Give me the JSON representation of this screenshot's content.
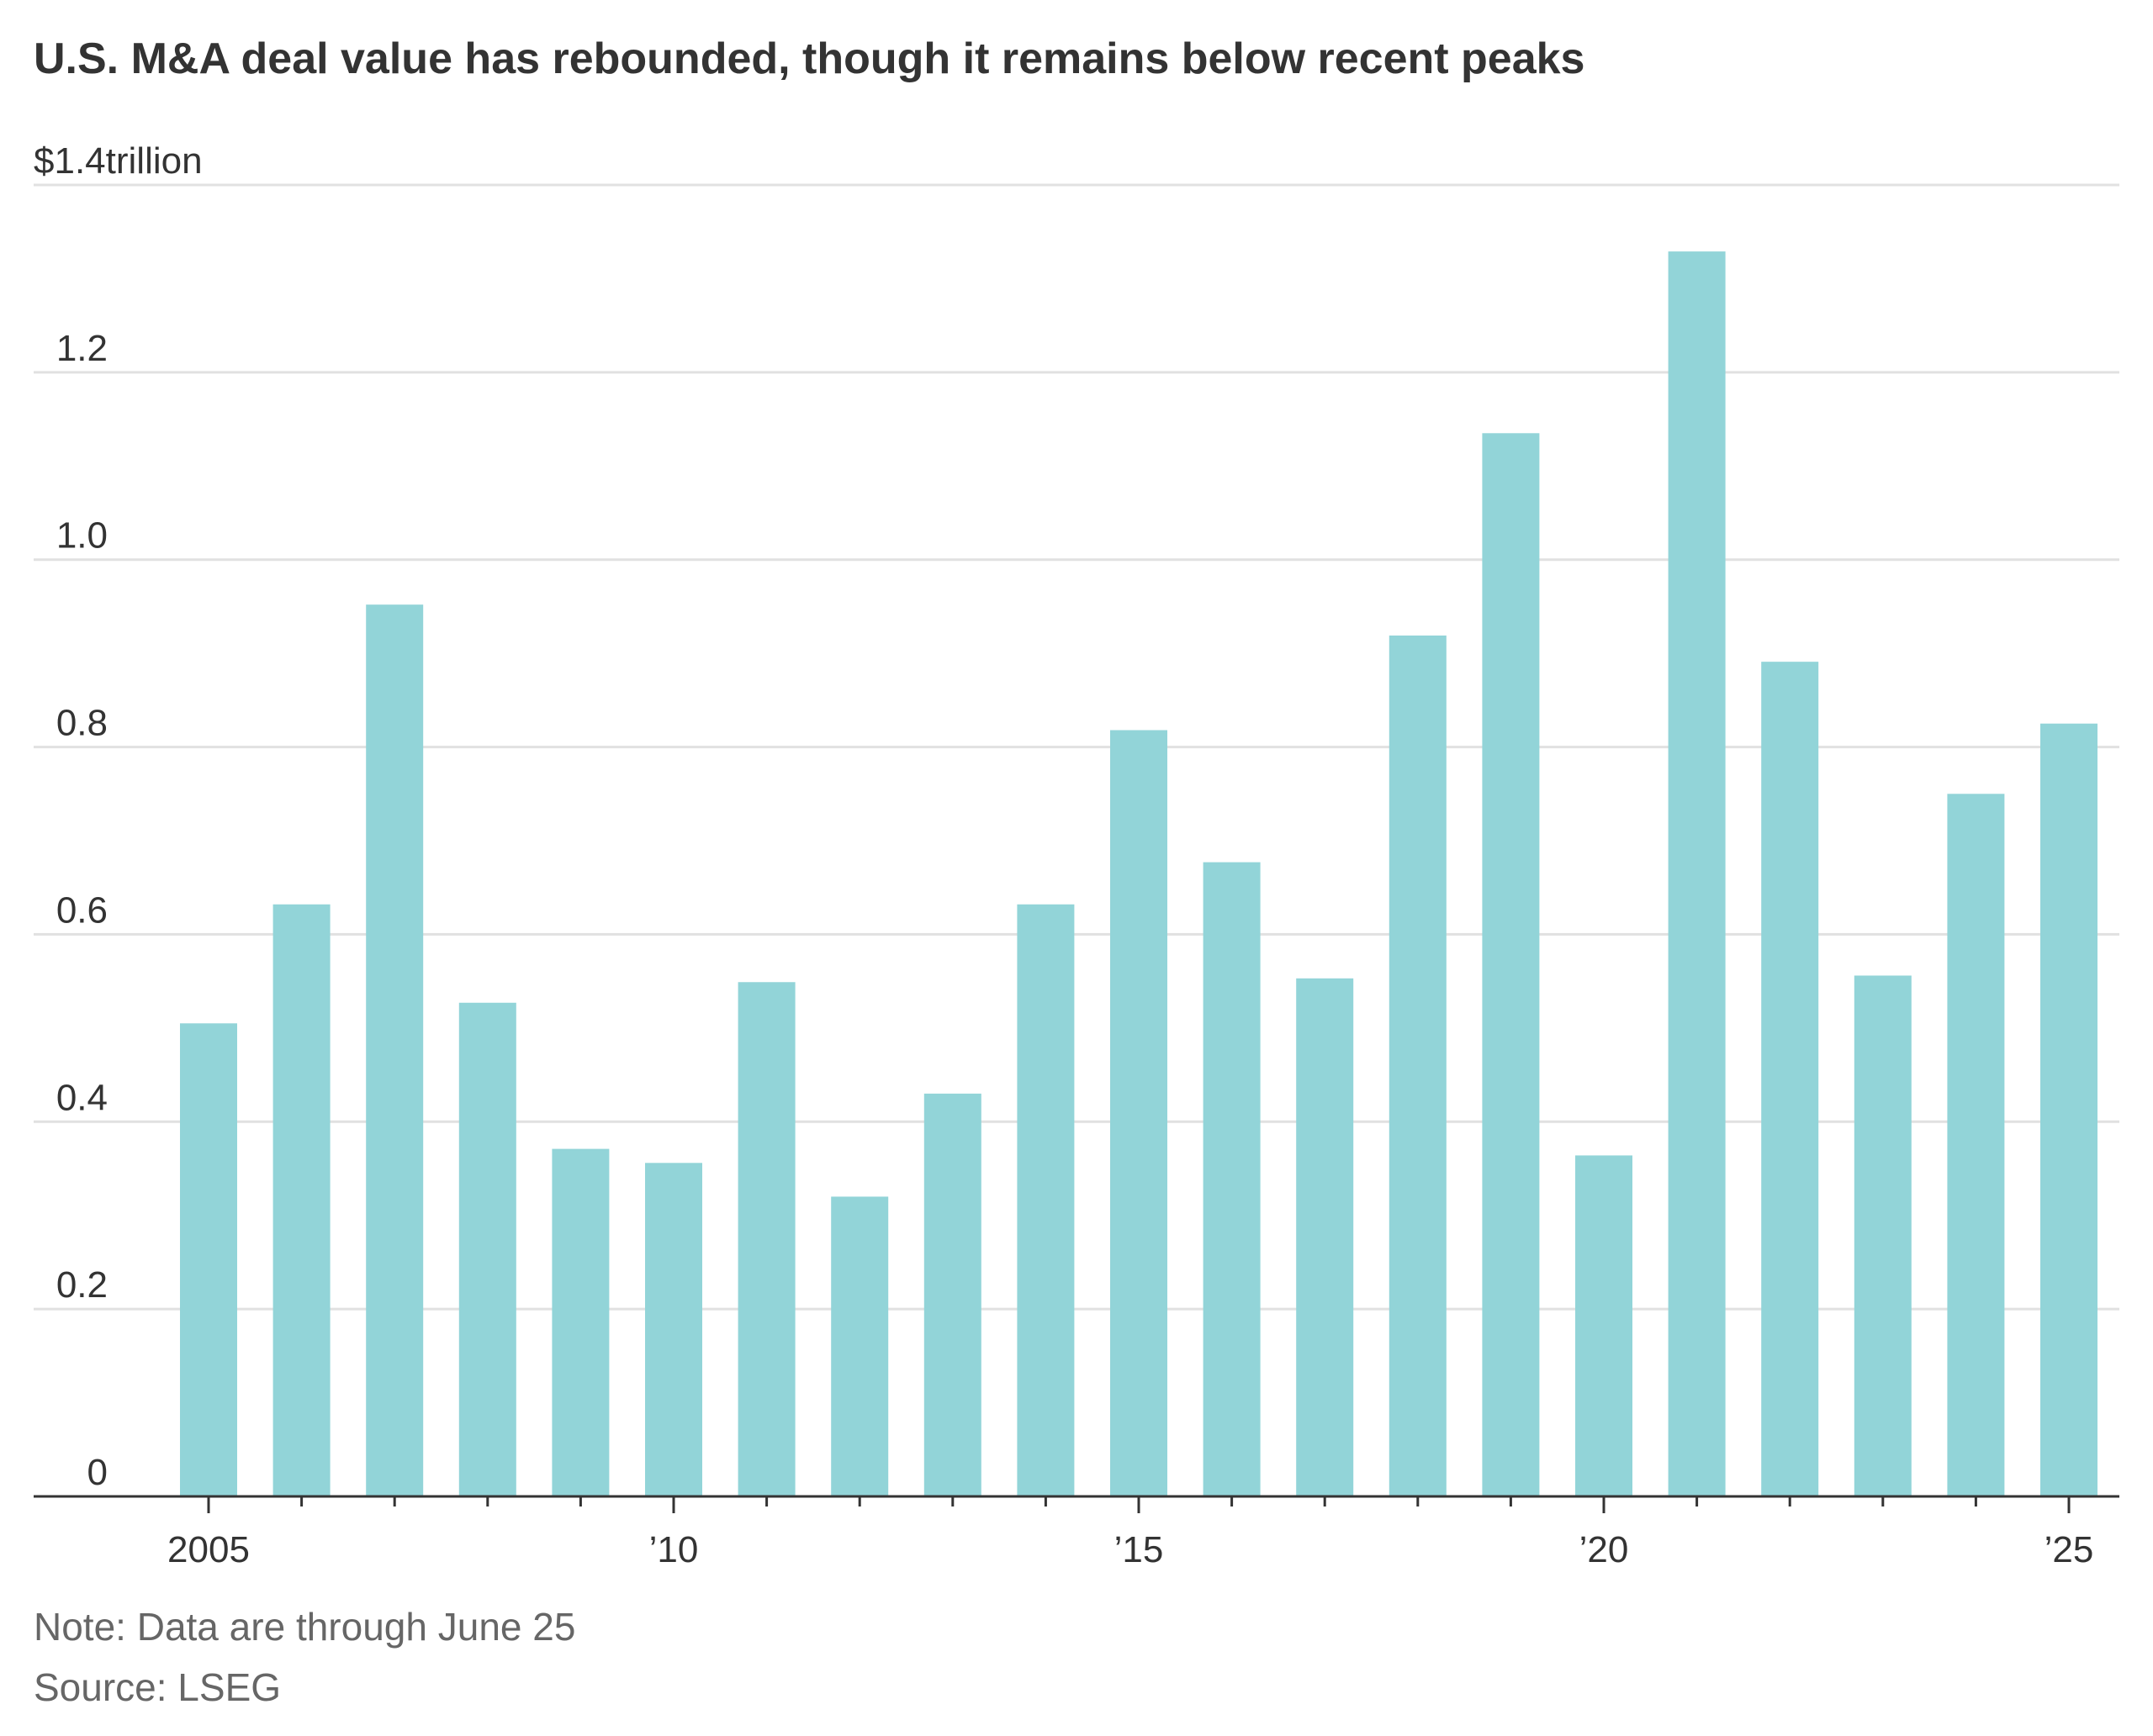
{
  "chart_data": {
    "type": "bar",
    "title": "U.S. M&A deal value has rebounded, though it remains below recent peaks",
    "ylabel": "$1.4trillion",
    "xlabel": "",
    "ylim": [
      0,
      1.4
    ],
    "yticks": [
      {
        "value": 0,
        "label": "0"
      },
      {
        "value": 0.2,
        "label": "0.2"
      },
      {
        "value": 0.4,
        "label": "0.4"
      },
      {
        "value": 0.6,
        "label": "0.6"
      },
      {
        "value": 0.8,
        "label": "0.8"
      },
      {
        "value": 1.0,
        "label": "1.0"
      },
      {
        "value": 1.2,
        "label": "1.2"
      },
      {
        "value": 1.4,
        "label": "$1.4trillion"
      }
    ],
    "categories": [
      2005,
      2006,
      2007,
      2008,
      2009,
      2010,
      2011,
      2012,
      2013,
      2014,
      2015,
      2016,
      2017,
      2018,
      2019,
      2020,
      2021,
      2022,
      2023,
      2024,
      2025
    ],
    "values": [
      0.505,
      0.632,
      0.952,
      0.527,
      0.371,
      0.356,
      0.549,
      0.32,
      0.43,
      0.632,
      0.818,
      0.677,
      0.553,
      0.919,
      1.135,
      0.364,
      1.329,
      0.891,
      0.556,
      0.75,
      0.825
    ],
    "xtick_labels": [
      {
        "year": 2005,
        "label": "2005"
      },
      {
        "year": 2010,
        "label": "’10"
      },
      {
        "year": 2015,
        "label": "’15"
      },
      {
        "year": 2020,
        "label": "’20"
      },
      {
        "year": 2025,
        "label": "’25"
      }
    ],
    "colors": {
      "bar": "#92d4d8",
      "grid": "#e1e1e1",
      "axis": "#333333"
    },
    "grid": true,
    "legend": "none"
  },
  "footer": {
    "note": "Note: Data are through June 25",
    "source": "Source: LSEG"
  }
}
